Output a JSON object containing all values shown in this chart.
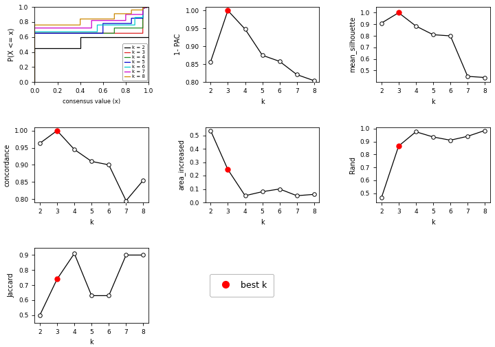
{
  "k_values": [
    2,
    3,
    4,
    5,
    6,
    7,
    8
  ],
  "best_k": 3,
  "pac_1minus": [
    0.857,
    1.0,
    0.948,
    0.875,
    0.858,
    0.821,
    0.804
  ],
  "mean_silhouette": [
    0.91,
    1.0,
    0.885,
    0.81,
    0.8,
    0.45,
    0.44
  ],
  "concordance": [
    0.963,
    1.0,
    0.945,
    0.91,
    0.9,
    0.795,
    0.855
  ],
  "area_increased": [
    0.535,
    0.245,
    0.05,
    0.08,
    0.1,
    0.05,
    0.06
  ],
  "rand": [
    0.465,
    0.865,
    0.975,
    0.935,
    0.91,
    0.94,
    0.985
  ],
  "jaccard": [
    0.5,
    0.74,
    0.91,
    0.63,
    0.63,
    0.9,
    0.9
  ],
  "cdf_colors": [
    "black",
    "#dd2222",
    "#228B22",
    "#0000cc",
    "#00cccc",
    "#cc00cc",
    "#cc8800"
  ],
  "cdf_labels": [
    "k = 2",
    "k = 3",
    "k = 4",
    "k = 5",
    "k = 6",
    "k = 7",
    "k = 8"
  ],
  "cdf_data": [
    [
      [
        0.0,
        0.0,
        0.4,
        0.4,
        1.0,
        1.0
      ],
      [
        0.0,
        0.45,
        0.45,
        0.6,
        0.6,
        1.0
      ]
    ],
    [
      [
        0.0,
        0.0,
        0.95,
        0.95,
        1.0
      ],
      [
        0.0,
        0.65,
        0.65,
        0.98,
        1.0
      ]
    ],
    [
      [
        0.0,
        0.0,
        0.7,
        0.7,
        0.95,
        0.95,
        1.0
      ],
      [
        0.0,
        0.65,
        0.65,
        0.72,
        0.72,
        0.98,
        1.0
      ]
    ],
    [
      [
        0.0,
        0.0,
        0.6,
        0.6,
        0.85,
        0.85,
        0.95,
        0.95,
        1.0
      ],
      [
        0.0,
        0.65,
        0.65,
        0.78,
        0.78,
        0.85,
        0.85,
        0.98,
        1.0
      ]
    ],
    [
      [
        0.0,
        0.0,
        0.55,
        0.55,
        0.88,
        0.88,
        0.95,
        0.95,
        1.0
      ],
      [
        0.0,
        0.67,
        0.67,
        0.76,
        0.76,
        0.86,
        0.86,
        0.98,
        1.0
      ]
    ],
    [
      [
        0.0,
        0.0,
        0.5,
        0.5,
        0.8,
        0.8,
        0.95,
        0.95,
        1.0
      ],
      [
        0.0,
        0.72,
        0.72,
        0.82,
        0.82,
        0.9,
        0.9,
        0.98,
        1.0
      ]
    ],
    [
      [
        0.0,
        0.0,
        0.4,
        0.4,
        0.7,
        0.7,
        0.85,
        0.85,
        0.95,
        0.95,
        1.0
      ],
      [
        0.0,
        0.76,
        0.76,
        0.84,
        0.84,
        0.91,
        0.91,
        0.96,
        0.96,
        0.99,
        1.0
      ]
    ]
  ],
  "best_k_color": "red",
  "figsize": [
    7.2,
    5.04
  ],
  "dpi": 100
}
